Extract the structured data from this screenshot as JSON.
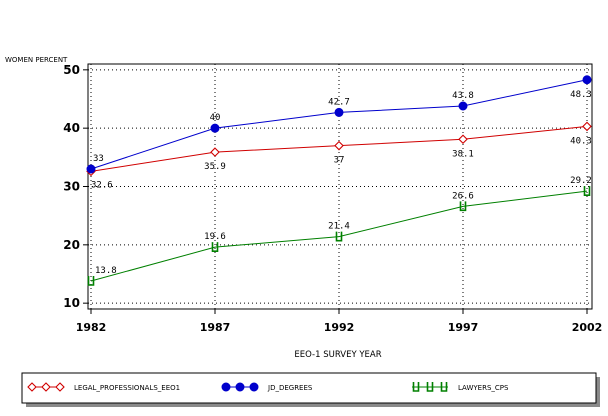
{
  "chart_data": {
    "type": "line",
    "ylabel": "WOMEN PERCENT",
    "xlabel": "EEO-1 SURVEY YEAR",
    "x": [
      1982,
      1987,
      1992,
      1997,
      2002
    ],
    "xticks": [
      "1982",
      "1987",
      "1992",
      "1997",
      "2002"
    ],
    "ylim": [
      9,
      51
    ],
    "yticks": [
      10,
      20,
      30,
      40,
      50
    ],
    "grid": true,
    "legend_position": "bottom",
    "series": [
      {
        "name": "LEGAL_PROFESSIONALS_EEO1",
        "color": "#d00000",
        "marker": "open-diamond",
        "values": [
          32.6,
          35.9,
          37,
          38.1,
          40.3
        ],
        "labels": [
          "32.6",
          "35.9",
          "37",
          "38.1",
          "40.3"
        ]
      },
      {
        "name": "JD_DEGREES",
        "color": "#0000cc",
        "marker": "filled-circle",
        "values": [
          33,
          40,
          42.7,
          43.8,
          48.3
        ],
        "labels": [
          "33",
          "40",
          "42.7",
          "43.8",
          "48.3"
        ]
      },
      {
        "name": "LAWYERS_CPS",
        "color": "#008000",
        "marker": "open-hook",
        "values": [
          13.8,
          19.6,
          21.4,
          26.6,
          29.2
        ],
        "labels": [
          "13.8",
          "19.6",
          "21.4",
          "26.6",
          "29.2"
        ]
      }
    ]
  }
}
